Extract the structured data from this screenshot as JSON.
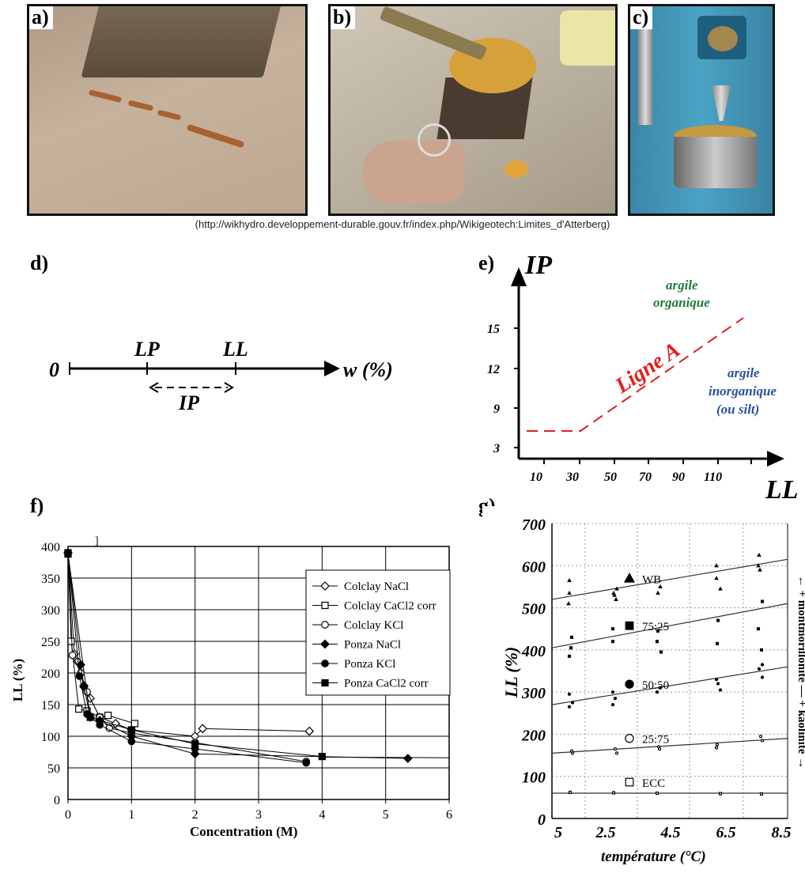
{
  "photos": [
    {
      "label": "a)",
      "desc": "plasticity-limit clay threads"
    },
    {
      "label": "b)",
      "desc": "Casagrande cup test"
    },
    {
      "label": "c)",
      "desc": "fall cone test"
    }
  ],
  "source": "(http://wikhydro.developpement-durable.gouv.fr/index.php/Wikigeotech:Limites_d'Atterberg)",
  "panel_labels": {
    "d": "d)",
    "e": "e)",
    "f": "f)",
    "g": "g)"
  },
  "panel_d": {
    "zero": "0",
    "lp": "LP",
    "ll": "LL",
    "w": "w (%)",
    "ip": "IP"
  },
  "panel_e": {
    "y_title": "IP",
    "x_title": "LL",
    "y_ticks": [
      "15",
      "12",
      "9",
      "3"
    ],
    "x_ticks": [
      "10",
      "30",
      "50",
      "70",
      "90",
      "110"
    ],
    "line_label": "Ligne A",
    "organic_1": "argile",
    "organic_2": "organique",
    "inorganic_1": "argile",
    "inorganic_2": "inorganique",
    "inorganic_3": "(ou silt)",
    "color_line": "#e02020",
    "color_organic": "#1e7a3c",
    "color_inorganic": "#2d4fa0"
  },
  "chart_f_extra": "]",
  "chart_data": [
    {
      "type": "line",
      "xlabel": "Concentration (M)",
      "ylabel": "LL (%)",
      "xlim": [
        0,
        6
      ],
      "ylim": [
        0,
        400
      ],
      "x_ticks": [
        "0",
        "1",
        "2",
        "3",
        "4",
        "5",
        "6"
      ],
      "y_ticks": [
        "0",
        "50",
        "100",
        "150",
        "200",
        "250",
        "300",
        "350",
        "400"
      ],
      "legend_position": "right",
      "series": [
        {
          "name": "Colclay NaCl",
          "marker": "diamond-open",
          "points": [
            [
              0,
              390
            ],
            [
              0.1,
              230
            ],
            [
              0.15,
              218
            ],
            [
              0.25,
              178
            ],
            [
              0.35,
              160
            ],
            [
              0.5,
              130
            ],
            [
              0.75,
              120
            ],
            [
              1,
              110
            ],
            [
              2,
              100
            ],
            [
              2.12,
              112
            ],
            [
              3.8,
              108
            ]
          ]
        },
        {
          "name": "Colclay CaCl2 corr",
          "marker": "square-open",
          "points": [
            [
              0,
              390
            ],
            [
              0.05,
              250
            ],
            [
              0.17,
              143
            ],
            [
              0.3,
              140
            ],
            [
              0.5,
              130
            ],
            [
              0.63,
              133
            ],
            [
              1.05,
              120
            ]
          ]
        },
        {
          "name": "Colclay KCl",
          "marker": "circle-open",
          "points": [
            [
              0,
              390
            ],
            [
              0.07,
              228
            ],
            [
              0.2,
              200
            ],
            [
              0.3,
              170
            ],
            [
              0.5,
              130
            ],
            [
              0.65,
              113
            ],
            [
              1,
              105
            ],
            [
              2,
              90
            ],
            [
              3.75,
              60
            ]
          ]
        },
        {
          "name": "Ponza NaCl",
          "marker": "diamond-filled",
          "points": [
            [
              0,
              390
            ],
            [
              0.2,
              213
            ],
            [
              0.25,
              180
            ],
            [
              0.35,
              130
            ],
            [
              0.5,
              125
            ],
            [
              1,
              100
            ],
            [
              2,
              72
            ],
            [
              5.35,
              65
            ]
          ]
        },
        {
          "name": "Ponza KCl",
          "marker": "circle-filled",
          "points": [
            [
              0,
              390
            ],
            [
              0.18,
              195
            ],
            [
              0.3,
              135
            ],
            [
              0.5,
              118
            ],
            [
              1,
              92
            ],
            [
              2,
              80
            ],
            [
              3.75,
              58
            ]
          ]
        },
        {
          "name": "Ponza CaCl2 corr",
          "marker": "square-filled",
          "points": [
            [
              0,
              388
            ],
            [
              0.35,
              130
            ],
            [
              1,
              110
            ],
            [
              2,
              88
            ],
            [
              4,
              68
            ]
          ]
        }
      ],
      "trend_tail": [
        [
          4,
          67
        ],
        [
          6,
          66
        ]
      ]
    },
    {
      "type": "scatter",
      "xlabel": "température (°C)",
      "ylabel": "LL (%)",
      "ylim": [
        0,
        700
      ],
      "x_ticks": [
        "5",
        "2.5",
        "4.5",
        "6.5",
        "8.5"
      ],
      "y_ticks": [
        "0",
        "100",
        "200",
        "300",
        "400",
        "500",
        "600",
        "700"
      ],
      "right_label": "← + montmorillonite  —  + kaolinite →",
      "series": [
        {
          "name": "WB",
          "marker": "triangle-filled",
          "trend": [
            520,
            615
          ],
          "points": [
            [
              0,
              565
            ],
            [
              0,
              535
            ],
            [
              0,
              510
            ],
            [
              1,
              545
            ],
            [
              1,
              535
            ],
            [
              1,
              530
            ],
            [
              1,
              520
            ],
            [
              2,
              550
            ],
            [
              2,
              535
            ],
            [
              3,
              600
            ],
            [
              3,
              570
            ],
            [
              3,
              545
            ],
            [
              4,
              625
            ],
            [
              4,
              600
            ],
            [
              4,
              590
            ]
          ]
        },
        {
          "name": "75:25",
          "marker": "square-filled",
          "trend": [
            405,
            510
          ],
          "points": [
            [
              0,
              430
            ],
            [
              0,
              405
            ],
            [
              0,
              385
            ],
            [
              1,
              450
            ],
            [
              1,
              420
            ],
            [
              2,
              445
            ],
            [
              2,
              420
            ],
            [
              2,
              395
            ],
            [
              3,
              470
            ],
            [
              3,
              415
            ],
            [
              4,
              515
            ],
            [
              4,
              450
            ],
            [
              4,
              400
            ]
          ]
        },
        {
          "name": "50:50",
          "marker": "circle-filled",
          "trend": [
            270,
            360
          ],
          "points": [
            [
              0,
              295
            ],
            [
              0,
              275
            ],
            [
              0,
              265
            ],
            [
              1,
              300
            ],
            [
              1,
              285
            ],
            [
              1,
              270
            ],
            [
              2,
              310
            ],
            [
              2,
              300
            ],
            [
              3,
              330
            ],
            [
              3,
              320
            ],
            [
              3,
              305
            ],
            [
              4,
              365
            ],
            [
              4,
              355
            ],
            [
              4,
              335
            ]
          ]
        },
        {
          "name": "25:75",
          "marker": "circle-open",
          "trend": [
            155,
            190
          ],
          "points": [
            [
              0,
              160
            ],
            [
              0,
              155
            ],
            [
              1,
              165
            ],
            [
              1,
              155
            ],
            [
              2,
              170
            ],
            [
              2,
              165
            ],
            [
              3,
              175
            ],
            [
              3,
              168
            ],
            [
              4,
              195
            ],
            [
              4,
              185
            ]
          ]
        },
        {
          "name": "ECC",
          "marker": "square-open",
          "trend": [
            60,
            60
          ],
          "points": [
            [
              0,
              62
            ],
            [
              1,
              61
            ],
            [
              2,
              60
            ],
            [
              3,
              59
            ],
            [
              4,
              58
            ]
          ]
        }
      ]
    }
  ]
}
